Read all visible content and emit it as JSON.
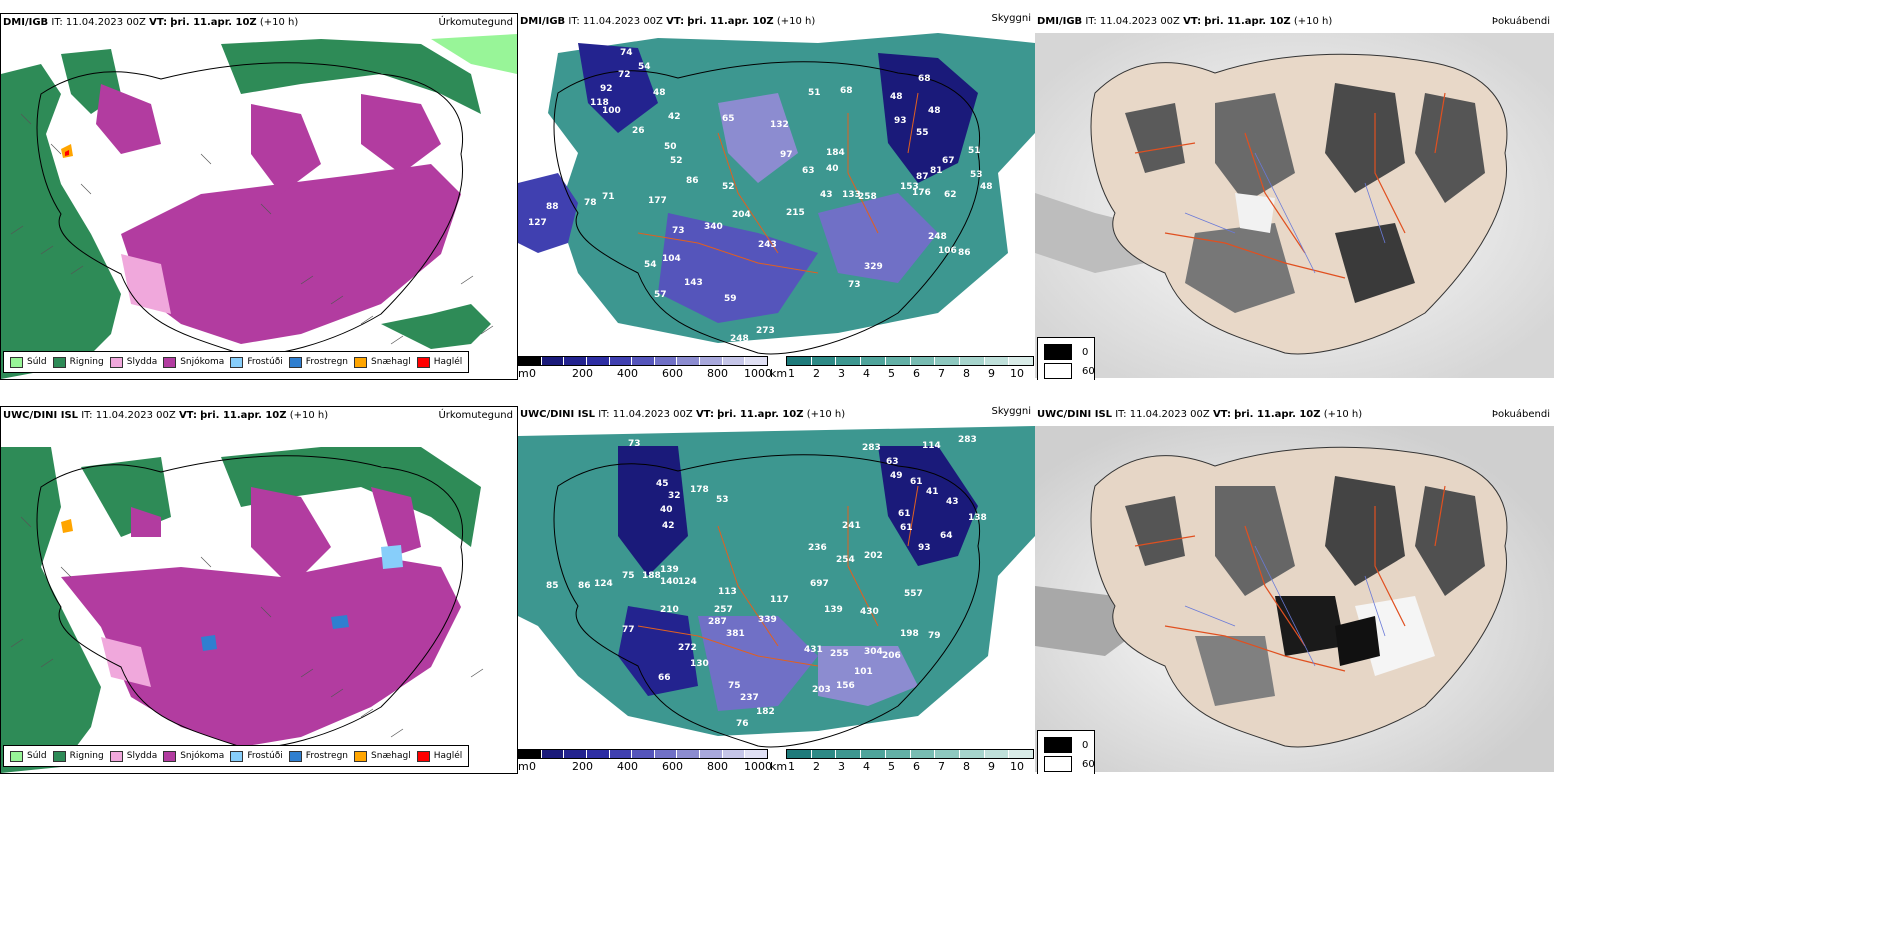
{
  "rows": [
    {
      "model": "DMI/IGB",
      "it": "IT: 11.04.2023 00Z",
      "vt_label": "VT:",
      "vt_value": "þri. 11.apr. 10Z",
      "lead": "(+10 h)",
      "panels": {
        "precip": "Úrkomutegund",
        "vis": "Skyggni",
        "fog": "Þokuábendi"
      }
    },
    {
      "model": "UWC/DINI ISL",
      "it": "IT: 11.04.2023 00Z",
      "vt_label": "VT:",
      "vt_value": "þri. 11.apr. 10Z",
      "lead": "(+10 h)",
      "panels": {
        "precip": "Úrkomutegund",
        "vis": "Skyggni",
        "fog": "Þokuábendi"
      }
    }
  ],
  "precip_legend": [
    {
      "label": "Súld",
      "color": "#98f598"
    },
    {
      "label": "Rigning",
      "color": "#2e8b57"
    },
    {
      "label": "Slydda",
      "color": "#f0a8dc"
    },
    {
      "label": "Snjókoma",
      "color": "#b23ca0"
    },
    {
      "label": "Frostúði",
      "color": "#87cefa"
    },
    {
      "label": "Frostregn",
      "color": "#2f7fd0"
    },
    {
      "label": "Snæhagl",
      "color": "#ffa500"
    },
    {
      "label": "Haglél",
      "color": "#ff0000"
    }
  ],
  "height_scale": {
    "unit": "m",
    "ticks": [
      "0",
      "200",
      "400",
      "600",
      "800",
      "1000"
    ],
    "colors": [
      "#000000",
      "#1a1a7a",
      "#23238f",
      "#2e2ea3",
      "#4040b0",
      "#5555bb",
      "#7070c6",
      "#8c8cd0",
      "#a8a8dc",
      "#c5c5e8",
      "#e0e0f4"
    ]
  },
  "km_scale": {
    "unit": "km",
    "ticks": [
      "1",
      "2",
      "3",
      "4",
      "5",
      "6",
      "7",
      "8",
      "9",
      "10"
    ],
    "colors": [
      "#1e7b7b",
      "#2d8a86",
      "#3d9790",
      "#4fa49b",
      "#63b0a6",
      "#78bcb2",
      "#8ec8bf",
      "#a6d4cc",
      "#bfe0da",
      "#d9ece8"
    ]
  },
  "fog_legend": [
    {
      "label": "0",
      "color": "#000000"
    },
    {
      "label": "60",
      "color": "#ffffff"
    }
  ],
  "vis_numbers_top": [
    "74",
    "54",
    "48",
    "42",
    "92",
    "118",
    "100",
    "72",
    "26",
    "50",
    "52",
    "86",
    "52",
    "65",
    "63",
    "132",
    "97",
    "51",
    "68",
    "48",
    "68",
    "48",
    "93",
    "55",
    "51",
    "53",
    "48",
    "127",
    "88",
    "78",
    "71",
    "177",
    "73",
    "340",
    "204",
    "215",
    "243",
    "133",
    "258",
    "153",
    "176",
    "248",
    "106",
    "86",
    "57",
    "54",
    "104",
    "143",
    "59",
    "273",
    "248",
    "73",
    "329",
    "43",
    "184",
    "40",
    "81",
    "67",
    "87",
    "62"
  ],
  "vis_numbers_bottom": [
    "73",
    "45",
    "32",
    "178",
    "53",
    "283",
    "114",
    "283",
    "63",
    "49",
    "61",
    "41",
    "43",
    "61",
    "61",
    "93",
    "64",
    "138",
    "40",
    "42",
    "86",
    "85",
    "124",
    "75",
    "188",
    "139",
    "140",
    "124",
    "113",
    "210",
    "257",
    "287",
    "381",
    "339",
    "117",
    "697",
    "139",
    "430",
    "557",
    "198",
    "79",
    "66",
    "77",
    "130",
    "272",
    "75",
    "237",
    "182",
    "76",
    "431",
    "255",
    "304",
    "206",
    "101",
    "156",
    "203",
    "241",
    "236",
    "254",
    "202"
  ]
}
